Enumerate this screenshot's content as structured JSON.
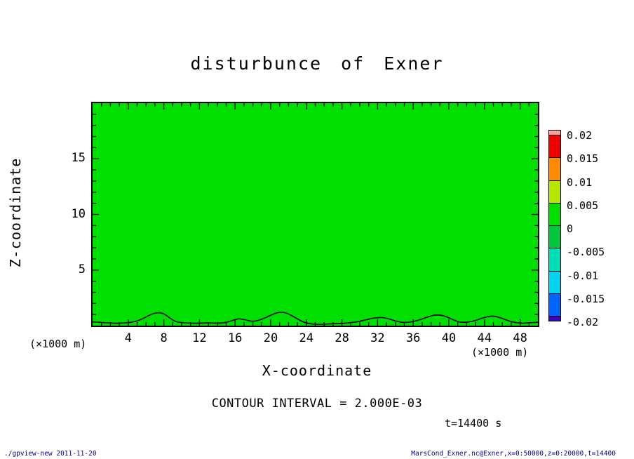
{
  "title": "disturbunce of Exner",
  "axes": {
    "x": {
      "label": "X-coordinate",
      "unit": "(×1000 m)",
      "min": 0,
      "max": 50,
      "minor_step": 1,
      "major_step": 4,
      "ticks": [
        4,
        8,
        12,
        16,
        20,
        24,
        28,
        32,
        36,
        40,
        44,
        48
      ]
    },
    "z": {
      "label": "Z-coordinate",
      "unit": "(×1000 m)",
      "min": 0,
      "max": 20,
      "minor_step": 1,
      "major_step": 5,
      "ticks": [
        5,
        10,
        15
      ]
    }
  },
  "plot": {
    "fill_color": "#00e000",
    "contour_color": "#000000",
    "frame_color": "#000000"
  },
  "colorbar": {
    "labels": [
      "0.02",
      "0.015",
      "0.01",
      "0.005",
      "0",
      "-0.005",
      "-0.01",
      "-0.015",
      "-0.02"
    ],
    "colors": [
      "#ff9e9e",
      "#f20000",
      "#ff8c00",
      "#b4e600",
      "#00e000",
      "#00c83c",
      "#00dcb4",
      "#00d2f0",
      "#0064ff",
      "#3c00c8"
    ]
  },
  "annotations": {
    "contour_interval": "CONTOUR INTERVAL = 2.000E-03",
    "time": "t=14400 s"
  },
  "footer": {
    "left": "./gpview-new  2011-11-20",
    "right": "MarsCond_Exner.nc@Exner,x=0:50000,z=0:20000,t=14400"
  },
  "chart_data": {
    "type": "heatmap",
    "subtype": "filled-contour",
    "title": "disturbunce of Exner",
    "xlabel": "X-coordinate (×1000 m)",
    "ylabel": "Z-coordinate (×1000 m)",
    "xlim": [
      0,
      50
    ],
    "ylim": [
      0,
      20
    ],
    "x_tick_labels": [
      4,
      8,
      12,
      16,
      20,
      24,
      28,
      32,
      36,
      40,
      44,
      48
    ],
    "y_tick_labels": [
      5,
      10,
      15
    ],
    "levels": [
      -0.02,
      -0.015,
      -0.01,
      -0.005,
      0,
      0.005,
      0.01,
      0.015,
      0.02
    ],
    "contour_interval": 0.002,
    "time_s": 14400,
    "legend_position": "right-colorbar",
    "dominant_band": {
      "range": [
        0,
        0.005
      ],
      "color": "#00e000",
      "note": "entire plotted domain lies in this single color band (solid green)"
    },
    "contour_line": {
      "level_note": "single contour adjacent to the 0 band (interval 2.000E-03), hugging the bottom boundary with small bumps near x ≈ 7, 16, 21, 32, 38, 44 (×1000 m)",
      "points": [
        [
          0,
          0.35
        ],
        [
          1.5,
          0.25
        ],
        [
          3,
          0.2
        ],
        [
          4.5,
          0.3
        ],
        [
          5.5,
          0.55
        ],
        [
          6.5,
          1.0
        ],
        [
          7.3,
          1.2
        ],
        [
          8,
          1.1
        ],
        [
          8.8,
          0.6
        ],
        [
          9.5,
          0.3
        ],
        [
          11,
          0.2
        ],
        [
          13,
          0.25
        ],
        [
          14.5,
          0.2
        ],
        [
          15.5,
          0.4
        ],
        [
          16.3,
          0.65
        ],
        [
          17,
          0.55
        ],
        [
          18,
          0.35
        ],
        [
          19,
          0.55
        ],
        [
          20,
          0.95
        ],
        [
          21,
          1.25
        ],
        [
          21.8,
          1.15
        ],
        [
          22.8,
          0.7
        ],
        [
          23.8,
          0.25
        ],
        [
          25,
          0.1
        ],
        [
          26.5,
          0.15
        ],
        [
          28,
          0.2
        ],
        [
          29.5,
          0.3
        ],
        [
          30.8,
          0.55
        ],
        [
          32,
          0.75
        ],
        [
          33,
          0.7
        ],
        [
          34,
          0.4
        ],
        [
          35,
          0.25
        ],
        [
          36.3,
          0.4
        ],
        [
          37.5,
          0.75
        ],
        [
          38.5,
          1.0
        ],
        [
          39.5,
          0.9
        ],
        [
          40.5,
          0.5
        ],
        [
          41.5,
          0.25
        ],
        [
          42.8,
          0.4
        ],
        [
          44,
          0.75
        ],
        [
          45,
          0.9
        ],
        [
          46,
          0.65
        ],
        [
          47,
          0.35
        ],
        [
          48,
          0.2
        ],
        [
          49,
          0.25
        ],
        [
          50,
          0.3
        ]
      ]
    }
  }
}
